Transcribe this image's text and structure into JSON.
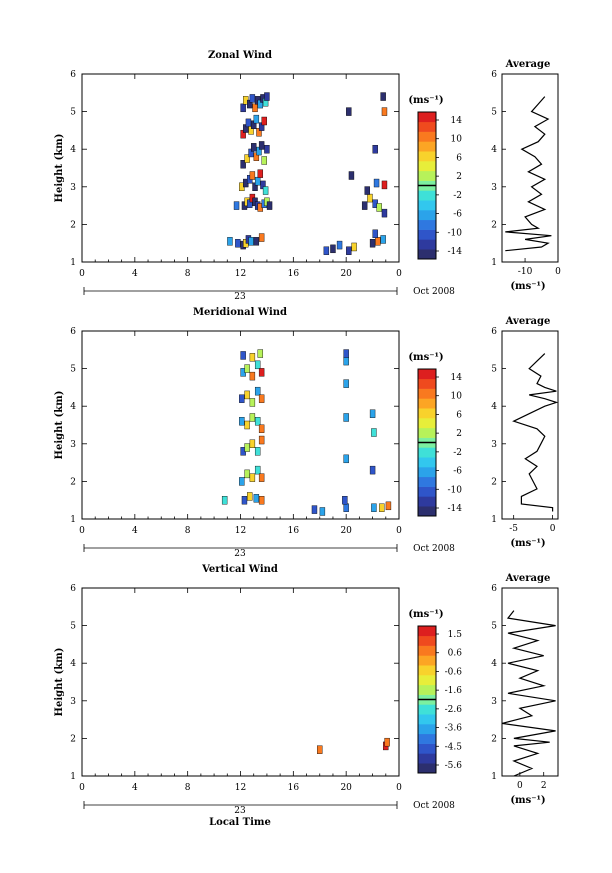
{
  "figure": {
    "date_label": "Oct 2008",
    "day_label": "23",
    "colorbar_unit": "(ms⁻¹)",
    "average_title": "Average",
    "average_unit": "(ms⁻¹)",
    "shared_xlabel": "Local Time"
  },
  "chart_data": [
    {
      "type": "heatmap",
      "title": "Zonal Wind",
      "xlabel": "",
      "ylabel": "Height (km)",
      "x_ticks": [
        "0",
        "4",
        "8",
        "12",
        "16",
        "20",
        "0"
      ],
      "y_ticks": [
        "1",
        "2",
        "3",
        "4",
        "5",
        "6"
      ],
      "xlim": [
        0,
        24
      ],
      "ylim": [
        1,
        6
      ],
      "colorbar": {
        "label": "(ms⁻¹)",
        "ticks": [
          "14",
          "10",
          "6",
          "2",
          "-2",
          "-6",
          "-10",
          "-14"
        ],
        "range": [
          -16,
          16
        ]
      },
      "cells": [
        {
          "t": 12.2,
          "h": 1.45,
          "v": -14
        },
        {
          "t": 12.4,
          "h": 1.5,
          "v": 6
        },
        {
          "t": 12.6,
          "h": 1.6,
          "v": -12
        },
        {
          "t": 12.8,
          "h": 1.55,
          "v": -6
        },
        {
          "t": 13.2,
          "h": 1.55,
          "v": -14
        },
        {
          "t": 13.6,
          "h": 1.65,
          "v": 10
        },
        {
          "t": 11.8,
          "h": 1.5,
          "v": -10
        },
        {
          "t": 11.2,
          "h": 1.55,
          "v": -6
        },
        {
          "t": 12.3,
          "h": 2.5,
          "v": -14
        },
        {
          "t": 12.5,
          "h": 2.6,
          "v": 6
        },
        {
          "t": 12.7,
          "h": 2.55,
          "v": -10
        },
        {
          "t": 12.9,
          "h": 2.7,
          "v": 14
        },
        {
          "t": 13.1,
          "h": 2.6,
          "v": -14
        },
        {
          "t": 13.3,
          "h": 2.5,
          "v": -12
        },
        {
          "t": 13.5,
          "h": 2.45,
          "v": 10
        },
        {
          "t": 13.8,
          "h": 2.55,
          "v": -8
        },
        {
          "t": 14.0,
          "h": 2.6,
          "v": 2
        },
        {
          "t": 14.2,
          "h": 2.5,
          "v": -14
        },
        {
          "t": 11.7,
          "h": 2.5,
          "v": -8
        },
        {
          "t": 12.1,
          "h": 3.0,
          "v": 6
        },
        {
          "t": 12.4,
          "h": 3.1,
          "v": -14
        },
        {
          "t": 12.7,
          "h": 3.2,
          "v": -10
        },
        {
          "t": 12.9,
          "h": 3.3,
          "v": 10
        },
        {
          "t": 13.1,
          "h": 3.0,
          "v": -14
        },
        {
          "t": 13.3,
          "h": 3.15,
          "v": -6
        },
        {
          "t": 13.5,
          "h": 3.35,
          "v": 14
        },
        {
          "t": 13.7,
          "h": 3.05,
          "v": -12
        },
        {
          "t": 13.9,
          "h": 2.9,
          "v": -2
        },
        {
          "t": 12.2,
          "h": 3.6,
          "v": -14
        },
        {
          "t": 12.5,
          "h": 3.75,
          "v": 6
        },
        {
          "t": 12.8,
          "h": 3.9,
          "v": -10
        },
        {
          "t": 13.0,
          "h": 4.05,
          "v": -14
        },
        {
          "t": 13.2,
          "h": 3.8,
          "v": 10
        },
        {
          "t": 13.4,
          "h": 3.95,
          "v": -6
        },
        {
          "t": 13.6,
          "h": 4.1,
          "v": -14
        },
        {
          "t": 13.8,
          "h": 3.7,
          "v": 2
        },
        {
          "t": 14.0,
          "h": 4.0,
          "v": -12
        },
        {
          "t": 12.2,
          "h": 4.4,
          "v": 14
        },
        {
          "t": 12.4,
          "h": 4.55,
          "v": -14
        },
        {
          "t": 12.6,
          "h": 4.7,
          "v": -10
        },
        {
          "t": 12.8,
          "h": 4.5,
          "v": 6
        },
        {
          "t": 13.0,
          "h": 4.65,
          "v": -14
        },
        {
          "t": 13.2,
          "h": 4.8,
          "v": -6
        },
        {
          "t": 13.4,
          "h": 4.45,
          "v": 10
        },
        {
          "t": 13.6,
          "h": 4.6,
          "v": -12
        },
        {
          "t": 13.8,
          "h": 4.75,
          "v": 14
        },
        {
          "t": 12.2,
          "h": 5.1,
          "v": -12
        },
        {
          "t": 12.4,
          "h": 5.3,
          "v": 6
        },
        {
          "t": 12.7,
          "h": 5.2,
          "v": -14
        },
        {
          "t": 12.9,
          "h": 5.35,
          "v": -10
        },
        {
          "t": 13.1,
          "h": 5.1,
          "v": 10
        },
        {
          "t": 13.3,
          "h": 5.3,
          "v": -14
        },
        {
          "t": 13.5,
          "h": 5.2,
          "v": -6
        },
        {
          "t": 13.7,
          "h": 5.35,
          "v": -14
        },
        {
          "t": 13.9,
          "h": 5.25,
          "v": -2
        },
        {
          "t": 14.0,
          "h": 5.4,
          "v": -12
        },
        {
          "t": 18.5,
          "h": 1.3,
          "v": -10
        },
        {
          "t": 19.0,
          "h": 1.35,
          "v": -14
        },
        {
          "t": 19.5,
          "h": 1.45,
          "v": -8
        },
        {
          "t": 20.2,
          "h": 1.3,
          "v": -12
        },
        {
          "t": 20.6,
          "h": 1.4,
          "v": 6
        },
        {
          "t": 22.0,
          "h": 1.5,
          "v": -14
        },
        {
          "t": 22.4,
          "h": 1.55,
          "v": 10
        },
        {
          "t": 22.8,
          "h": 1.6,
          "v": -6
        },
        {
          "t": 22.2,
          "h": 1.75,
          "v": -10
        },
        {
          "t": 21.4,
          "h": 2.5,
          "v": -14
        },
        {
          "t": 21.8,
          "h": 2.7,
          "v": 6
        },
        {
          "t": 22.2,
          "h": 2.55,
          "v": -10
        },
        {
          "t": 22.5,
          "h": 2.45,
          "v": 2
        },
        {
          "t": 22.9,
          "h": 2.3,
          "v": -12
        },
        {
          "t": 21.6,
          "h": 2.9,
          "v": -14
        },
        {
          "t": 22.3,
          "h": 3.1,
          "v": -8
        },
        {
          "t": 22.9,
          "h": 3.05,
          "v": 14
        },
        {
          "t": 20.4,
          "h": 3.3,
          "v": -14
        },
        {
          "t": 22.2,
          "h": 4.0,
          "v": -12
        },
        {
          "t": 20.2,
          "h": 5.0,
          "v": -14
        },
        {
          "t": 22.9,
          "h": 5.0,
          "v": 10
        },
        {
          "t": 22.8,
          "h": 5.4,
          "v": -14
        }
      ],
      "average": {
        "xlim": [
          -17,
          0
        ],
        "x_ticks": [
          "-10",
          "0"
        ],
        "h": [
          1.3,
          1.4,
          1.5,
          1.6,
          1.7,
          1.8,
          1.9,
          2.0,
          2.2,
          2.4,
          2.6,
          2.8,
          3.0,
          3.2,
          3.4,
          3.6,
          3.8,
          4.0,
          4.2,
          4.4,
          4.6,
          4.8,
          5.0,
          5.2,
          5.4
        ],
        "v": [
          -16,
          -5,
          -3,
          -10,
          -2,
          -16,
          -6,
          -8,
          -10,
          -4,
          -9,
          -5,
          -8,
          -4,
          -9,
          -5,
          -7,
          -11,
          -6,
          -4,
          -7,
          -3,
          -8,
          -6,
          -4
        ]
      }
    },
    {
      "type": "heatmap",
      "title": "Meridional Wind",
      "xlabel": "",
      "ylabel": "Height (km)",
      "x_ticks": [
        "0",
        "4",
        "8",
        "12",
        "16",
        "20",
        "0"
      ],
      "y_ticks": [
        "1",
        "2",
        "3",
        "4",
        "5",
        "6"
      ],
      "xlim": [
        0,
        24
      ],
      "ylim": [
        1,
        6
      ],
      "colorbar": {
        "label": "(ms⁻¹)",
        "ticks": [
          "14",
          "10",
          "6",
          "2",
          "-2",
          "-6",
          "-10",
          "-14"
        ],
        "range": [
          -16,
          16
        ]
      },
      "cells": [
        {
          "t": 10.8,
          "h": 1.5,
          "v": -2
        },
        {
          "t": 12.3,
          "h": 1.5,
          "v": -10
        },
        {
          "t": 12.7,
          "h": 1.6,
          "v": 6
        },
        {
          "t": 13.2,
          "h": 1.55,
          "v": -6
        },
        {
          "t": 13.6,
          "h": 1.5,
          "v": 10
        },
        {
          "t": 12.1,
          "h": 2.0,
          "v": -6
        },
        {
          "t": 12.5,
          "h": 2.2,
          "v": 2
        },
        {
          "t": 12.9,
          "h": 2.1,
          "v": 6
        },
        {
          "t": 13.3,
          "h": 2.3,
          "v": -2
        },
        {
          "t": 13.6,
          "h": 2.1,
          "v": 10
        },
        {
          "t": 12.2,
          "h": 2.8,
          "v": -10
        },
        {
          "t": 12.5,
          "h": 2.9,
          "v": 2
        },
        {
          "t": 12.9,
          "h": 3.0,
          "v": 6
        },
        {
          "t": 13.3,
          "h": 2.8,
          "v": -2
        },
        {
          "t": 13.6,
          "h": 3.1,
          "v": 10
        },
        {
          "t": 12.1,
          "h": 3.6,
          "v": -6
        },
        {
          "t": 12.5,
          "h": 3.5,
          "v": 6
        },
        {
          "t": 12.9,
          "h": 3.7,
          "v": 2
        },
        {
          "t": 13.3,
          "h": 3.6,
          "v": -2
        },
        {
          "t": 13.6,
          "h": 3.4,
          "v": 10
        },
        {
          "t": 12.1,
          "h": 4.2,
          "v": -10
        },
        {
          "t": 12.5,
          "h": 4.3,
          "v": 6
        },
        {
          "t": 12.9,
          "h": 4.1,
          "v": 2
        },
        {
          "t": 13.3,
          "h": 4.4,
          "v": -6
        },
        {
          "t": 13.6,
          "h": 4.2,
          "v": 10
        },
        {
          "t": 12.2,
          "h": 4.9,
          "v": -6
        },
        {
          "t": 12.5,
          "h": 5.0,
          "v": 2
        },
        {
          "t": 12.9,
          "h": 4.8,
          "v": 10
        },
        {
          "t": 13.3,
          "h": 5.1,
          "v": -2
        },
        {
          "t": 13.6,
          "h": 4.9,
          "v": 14
        },
        {
          "t": 12.2,
          "h": 5.35,
          "v": -10
        },
        {
          "t": 12.9,
          "h": 5.3,
          "v": 6
        },
        {
          "t": 13.5,
          "h": 5.4,
          "v": 2
        },
        {
          "t": 17.6,
          "h": 1.25,
          "v": -10
        },
        {
          "t": 18.2,
          "h": 1.2,
          "v": -6
        },
        {
          "t": 20.0,
          "h": 1.3,
          "v": -8
        },
        {
          "t": 19.9,
          "h": 1.5,
          "v": -10
        },
        {
          "t": 20.0,
          "h": 2.6,
          "v": -6
        },
        {
          "t": 20.0,
          "h": 3.7,
          "v": -6
        },
        {
          "t": 20.0,
          "h": 4.6,
          "v": -6
        },
        {
          "t": 20.0,
          "h": 5.2,
          "v": -6
        },
        {
          "t": 20.0,
          "h": 5.4,
          "v": -10
        },
        {
          "t": 22.0,
          "h": 2.3,
          "v": -10
        },
        {
          "t": 22.1,
          "h": 3.3,
          "v": -2
        },
        {
          "t": 22.0,
          "h": 3.8,
          "v": -6
        },
        {
          "t": 22.7,
          "h": 1.3,
          "v": 6
        },
        {
          "t": 23.2,
          "h": 1.35,
          "v": 10
        },
        {
          "t": 22.1,
          "h": 1.3,
          "v": -6
        }
      ],
      "average": {
        "xlim": [
          -6.5,
          0.7
        ],
        "x_ticks": [
          "-5",
          "0"
        ],
        "h": [
          1.2,
          1.3,
          1.4,
          1.6,
          1.8,
          2.0,
          2.2,
          2.4,
          2.6,
          2.8,
          3.0,
          3.2,
          3.4,
          3.6,
          3.8,
          4.0,
          4.1,
          4.2,
          4.3,
          4.4,
          4.5,
          4.6,
          4.8,
          5.0,
          5.2,
          5.4
        ],
        "v": [
          0,
          0,
          -4,
          -4,
          -2,
          -2.5,
          -3,
          -2,
          -3.5,
          -2,
          -1.5,
          -1,
          -2,
          -5,
          -3,
          -1,
          0.5,
          -1,
          -3,
          0.5,
          -1,
          -2,
          -1.5,
          -3,
          -2,
          -1
        ]
      }
    },
    {
      "type": "heatmap",
      "title": "Vertical Wind",
      "xlabel": "Local Time",
      "ylabel": "Height (km)",
      "x_ticks": [
        "0",
        "4",
        "8",
        "12",
        "16",
        "20",
        "0"
      ],
      "y_ticks": [
        "1",
        "2",
        "3",
        "4",
        "5",
        "6"
      ],
      "xlim": [
        0,
        24
      ],
      "ylim": [
        1,
        6
      ],
      "colorbar": {
        "label": "(ms⁻¹)",
        "ticks": [
          "1.5",
          "0.6",
          "-0.6",
          "-1.6",
          "-2.6",
          "-3.6",
          "-4.5",
          "-5.6"
        ],
        "range": [
          -6,
          2
        ]
      },
      "cells": [
        {
          "t": 18.0,
          "h": 1.7,
          "v": 0.6
        },
        {
          "t": 23.0,
          "h": 1.8,
          "v": 1.5
        },
        {
          "t": 23.1,
          "h": 1.9,
          "v": 0.6
        }
      ],
      "average": {
        "xlim": [
          -1.5,
          3.2
        ],
        "x_ticks": [
          "0",
          "2"
        ],
        "h": [
          1.0,
          1.2,
          1.4,
          1.6,
          1.8,
          1.9,
          2.0,
          2.2,
          2.4,
          2.6,
          2.8,
          3.0,
          3.2,
          3.4,
          3.6,
          3.8,
          4.0,
          4.2,
          4.4,
          4.6,
          4.8,
          5.0,
          5.2,
          5.4
        ],
        "v": [
          -0.5,
          1,
          -0.5,
          1.5,
          -0.5,
          2.5,
          -0.5,
          3,
          -1.5,
          1,
          0,
          3,
          -1,
          2,
          0,
          1.5,
          -1,
          2,
          -0.5,
          1.5,
          -1,
          3,
          -1,
          -0.5
        ]
      }
    }
  ]
}
